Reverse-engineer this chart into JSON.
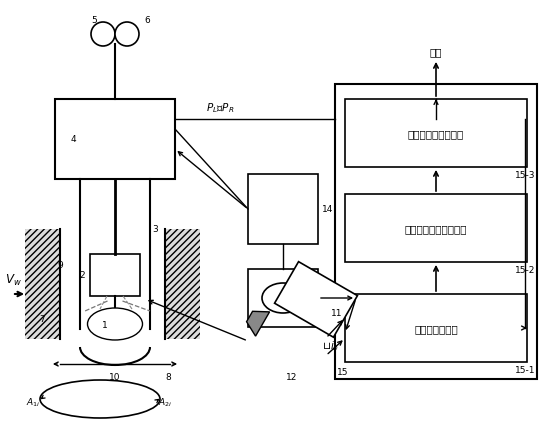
{
  "bg_color": "#ffffff",
  "lc": "#000000",
  "fs": 7.5,
  "fs_sm": 6.5,
  "label_15_1": "焊接图像采集卡",
  "label_15_2": "焊丝位置信息提取模块",
  "label_15_3": "焊缝偏差值求取模块",
  "label_output": "输出",
  "label_PL_PR": "$P_L$、$P_R$",
  "label_Vw": "$V_w$",
  "label_A1i": "$A_{1i}$",
  "label_A2i": "$A_{2i}$"
}
